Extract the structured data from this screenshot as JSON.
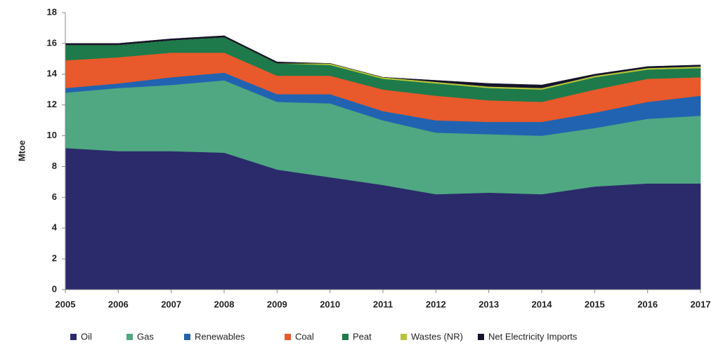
{
  "chart_data": {
    "type": "stacked_area",
    "y_label": "Mtoe",
    "categories": [
      "2005",
      "2006",
      "2007",
      "2008",
      "2009",
      "2010",
      "2011",
      "2012",
      "2013",
      "2014",
      "2015",
      "2016",
      "2017"
    ],
    "series": [
      {
        "name": "Oil",
        "color": "#2b2a6b",
        "values": [
          9.2,
          9.0,
          9.0,
          8.9,
          7.8,
          7.3,
          6.8,
          6.2,
          6.3,
          6.2,
          6.7,
          6.9,
          6.9
        ]
      },
      {
        "name": "Gas",
        "color": "#4fa882",
        "values": [
          3.6,
          4.1,
          4.3,
          4.7,
          4.4,
          4.8,
          4.2,
          4.0,
          3.8,
          3.8,
          3.8,
          4.2,
          4.4
        ]
      },
      {
        "name": "Renewables",
        "color": "#2163b0",
        "values": [
          0.3,
          0.3,
          0.5,
          0.5,
          0.5,
          0.6,
          0.6,
          0.8,
          0.8,
          0.9,
          1.0,
          1.1,
          1.3
        ]
      },
      {
        "name": "Coal",
        "color": "#e8592b",
        "values": [
          1.8,
          1.7,
          1.6,
          1.3,
          1.2,
          1.2,
          1.4,
          1.6,
          1.4,
          1.3,
          1.5,
          1.5,
          1.2
        ]
      },
      {
        "name": "Peat",
        "color": "#1e7a4a",
        "values": [
          1.0,
          0.8,
          0.8,
          1.0,
          0.8,
          0.7,
          0.7,
          0.8,
          0.8,
          0.8,
          0.8,
          0.6,
          0.6
        ]
      },
      {
        "name": "Wastes (NR)",
        "color": "#b5c43a",
        "values": [
          0,
          0,
          0,
          0,
          0,
          0.1,
          0.1,
          0.1,
          0.1,
          0.1,
          0.1,
          0.1,
          0.1
        ]
      },
      {
        "name": "Net Electricity Imports",
        "color": "#14142a",
        "values": [
          0.1,
          0.1,
          0.1,
          0.1,
          0.1,
          0,
          0,
          0.1,
          0.2,
          0.2,
          0.1,
          0.1,
          0.1
        ]
      }
    ],
    "ylim": [
      0,
      18
    ],
    "yticks": [
      0,
      2,
      4,
      6,
      8,
      10,
      12,
      14,
      16,
      18
    ],
    "legend": "bottom"
  }
}
